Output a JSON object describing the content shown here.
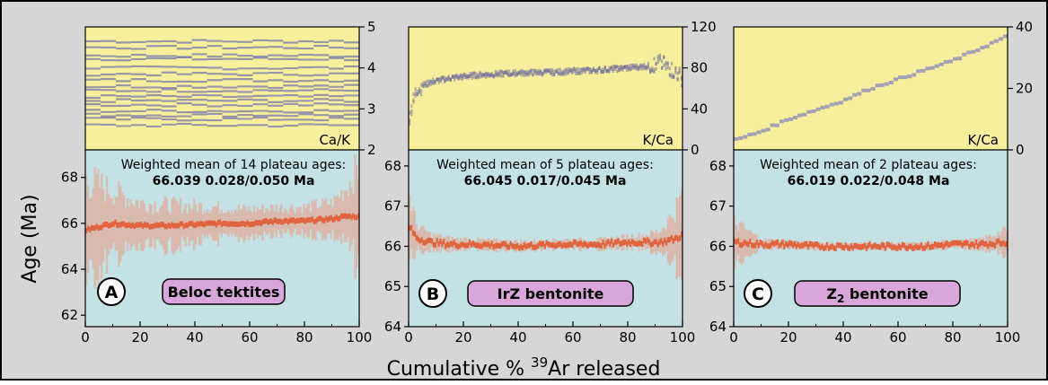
{
  "figure": {
    "y_axis_label": "Age (Ma)",
    "x_axis_label_prefix": "Cumulative % ",
    "x_axis_label_sup": "39",
    "x_axis_label_suffix": "Ar released",
    "colors": {
      "background": "#d6d6d6",
      "upper_fill": "#f8ef9c",
      "lower_fill": "#c4e1e3",
      "ratio_steps": "#6f6fa6",
      "age_steps": "#e2582f",
      "age_error": "#e8a08a",
      "sample_label_fill": "#d9a6d9"
    }
  },
  "chart_data": [
    {
      "type": "step-spectrum",
      "panel": "A",
      "sample_label": "Beloc tektites",
      "annotation_line1": "Weighted mean of 14 plateau ages:",
      "annotation_line2": "66.039 0.028/0.050 Ma",
      "xlim": [
        0,
        100
      ],
      "x_ticks": [
        0,
        20,
        40,
        60,
        80,
        100
      ],
      "ratio_label": "Ca/K",
      "ratio_ylim": [
        2,
        5
      ],
      "ratio_ticks": [
        2,
        3,
        4,
        5
      ],
      "ratio_values": [
        4.65,
        4.5,
        4.3,
        4.22,
        4.0,
        3.85,
        3.7,
        3.55,
        3.45,
        3.3,
        3.2,
        3.1,
        2.95,
        2.85,
        2.75,
        2.6
      ],
      "ratio_color": "#7a7aa8",
      "age_ylim": [
        61.5,
        69.2
      ],
      "age_ticks": [
        62,
        64,
        66,
        68
      ],
      "age_x": [
        0,
        10,
        20,
        30,
        40,
        50,
        60,
        70,
        80,
        90,
        95,
        100
      ],
      "age_y": [
        65.7,
        66.0,
        65.9,
        65.9,
        65.95,
        66.0,
        66.0,
        66.1,
        66.1,
        66.2,
        66.3,
        66.3
      ],
      "age_error": [
        2.2,
        1.4,
        1.0,
        0.9,
        0.8,
        0.7,
        0.6,
        0.6,
        0.6,
        0.7,
        1.2,
        2.2
      ]
    },
    {
      "type": "step-spectrum",
      "panel": "B",
      "sample_label": "IrZ bentonite",
      "annotation_line1": "Weighted mean of 5 plateau ages:",
      "annotation_line2": "66.045 0.017/0.045 Ma",
      "xlim": [
        0,
        100
      ],
      "x_ticks": [
        0,
        20,
        40,
        60,
        80,
        100
      ],
      "ratio_label": "K/Ca",
      "ratio_ylim": [
        0,
        120
      ],
      "ratio_ticks": [
        0,
        40,
        80,
        120
      ],
      "ratio_x": [
        0,
        3,
        8,
        15,
        25,
        40,
        55,
        70,
        80,
        88,
        92,
        95,
        98,
        100
      ],
      "ratio_y": [
        30,
        60,
        66,
        70,
        73,
        75,
        76,
        78,
        80,
        82,
        85,
        80,
        75,
        70
      ],
      "ratio_color": "#5e5e9c",
      "age_ylim": [
        64,
        68.4
      ],
      "age_ticks": [
        64,
        65,
        66,
        67,
        68
      ],
      "age_x": [
        0,
        3,
        8,
        15,
        25,
        40,
        55,
        70,
        80,
        88,
        92,
        95,
        98,
        100
      ],
      "age_y": [
        66.5,
        66.2,
        66.1,
        66.05,
        66.05,
        66.0,
        66.05,
        66.05,
        66.1,
        66.1,
        66.1,
        66.15,
        66.2,
        66.3
      ],
      "age_error": [
        0.8,
        0.3,
        0.2,
        0.15,
        0.12,
        0.12,
        0.12,
        0.12,
        0.15,
        0.2,
        0.3,
        0.5,
        0.8,
        1.0
      ]
    },
    {
      "type": "step-spectrum",
      "panel": "C",
      "sample_label_main": "Z",
      "sample_label_sub": "2",
      "sample_label_rest": " bentonite",
      "annotation_line1": "Weighted mean of 2 plateau ages:",
      "annotation_line2": "66.019 0.022/0.048 Ma",
      "xlim": [
        0,
        100
      ],
      "x_ticks": [
        0,
        20,
        40,
        60,
        80,
        100
      ],
      "ratio_label": "K/Ca",
      "ratio_ylim": [
        0,
        40
      ],
      "ratio_ticks": [
        0,
        20,
        40
      ],
      "ratio_x": [
        0,
        10,
        20,
        30,
        40,
        50,
        60,
        70,
        80,
        90,
        100
      ],
      "ratio_y": [
        3,
        6,
        10,
        13,
        16,
        20,
        23,
        26,
        29,
        33,
        37
      ],
      "ratio_color": "#8d8dba",
      "age_ylim": [
        64,
        68.4
      ],
      "age_ticks": [
        64,
        65,
        66,
        67,
        68
      ],
      "age_x": [
        0,
        10,
        20,
        30,
        40,
        50,
        60,
        70,
        80,
        90,
        100
      ],
      "age_y": [
        66.1,
        66.05,
        66.05,
        66.0,
        66.0,
        66.0,
        66.0,
        66.0,
        66.05,
        66.05,
        66.1
      ],
      "age_error": [
        0.5,
        0.12,
        0.1,
        0.08,
        0.08,
        0.08,
        0.08,
        0.08,
        0.1,
        0.12,
        0.3
      ]
    }
  ]
}
